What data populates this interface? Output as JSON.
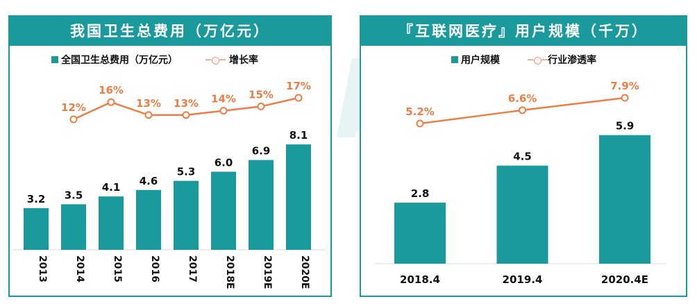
{
  "watermark": "MobTech",
  "colors": {
    "bar": "#1a9a9c",
    "line": "#ee7d45",
    "header": "#1a9a9c"
  },
  "chart_data": [
    {
      "type": "bar+line",
      "title": "我国卫生总费用（万亿元）",
      "categories": [
        "2013",
        "2014",
        "2015",
        "2016",
        "2017",
        "2018E",
        "2019E",
        "2020E"
      ],
      "series": [
        {
          "name": "全国卫生总费用（万亿元）",
          "type": "bar",
          "values": [
            3.2,
            3.5,
            4.1,
            4.6,
            5.3,
            6.0,
            6.9,
            8.1
          ],
          "labels": [
            "3.2",
            "3.5",
            "4.1",
            "4.6",
            "5.3",
            "6.0",
            "6.9",
            "8.1"
          ]
        },
        {
          "name": "增长率",
          "type": "line",
          "values": [
            null,
            12,
            16,
            13,
            13,
            14,
            15,
            17
          ],
          "labels": [
            null,
            "12%",
            "16%",
            "13%",
            "13%",
            "14%",
            "15%",
            "17%"
          ]
        }
      ],
      "legend": "top"
    },
    {
      "type": "bar+line",
      "title": "『互联网医疗』用户规模（千万）",
      "categories": [
        "2018.4",
        "2019.4",
        "2020.4E"
      ],
      "series": [
        {
          "name": "用户规模",
          "type": "bar",
          "values": [
            2.8,
            4.5,
            5.9
          ],
          "labels": [
            "2.8",
            "4.5",
            "5.9"
          ]
        },
        {
          "name": "行业渗透率",
          "type": "line",
          "values": [
            5.2,
            6.6,
            7.9
          ],
          "labels": [
            "5.2%",
            "6.6%",
            "7.9%"
          ]
        }
      ],
      "legend": "top"
    }
  ]
}
